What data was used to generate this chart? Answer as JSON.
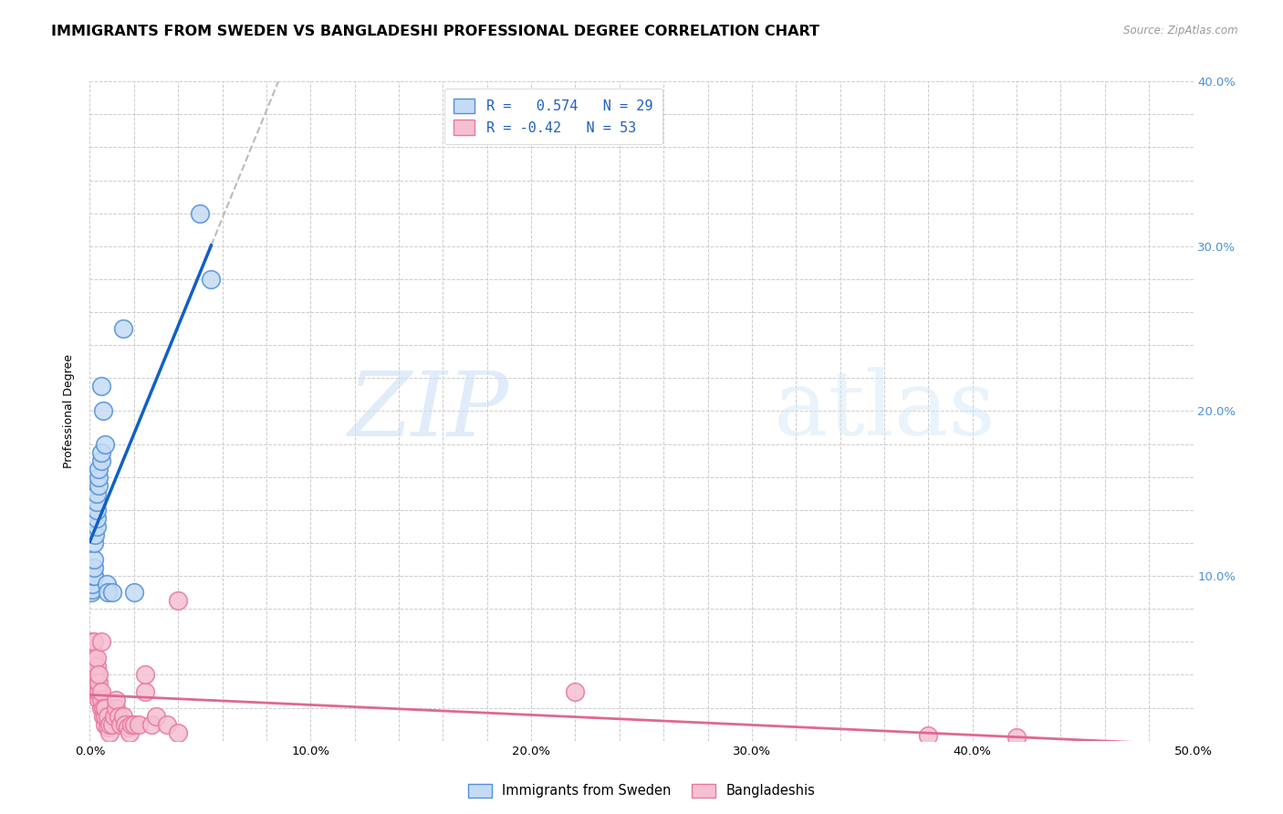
{
  "title": "IMMIGRANTS FROM SWEDEN VS BANGLADESHI PROFESSIONAL DEGREE CORRELATION CHART",
  "source": "Source: ZipAtlas.com",
  "ylabel": "Professional Degree",
  "legend_labels": [
    "Immigrants from Sweden",
    "Bangladeshis"
  ],
  "r_sweden": 0.574,
  "n_sweden": 29,
  "r_bangladesh": -0.42,
  "n_bangladesh": 53,
  "sweden_fill_color": "#c5dbf5",
  "bangladesh_fill_color": "#f5c0d0",
  "sweden_edge_color": "#5090d8",
  "bangladesh_edge_color": "#e878a0",
  "sweden_line_color": "#1060c8",
  "bangladesh_line_color": "#e06890",
  "dashed_color": "#bbbbbb",
  "right_tick_color": "#4a90d9",
  "xlim": [
    0.0,
    0.5
  ],
  "ylim": [
    0.0,
    0.4
  ],
  "background_color": "#ffffff",
  "grid_color": "#cccccc",
  "title_fontsize": 11.5,
  "axis_label_fontsize": 9,
  "tick_fontsize": 9.5,
  "scatter_size": 200,
  "sweden_scatter_x": [
    0.0008,
    0.001,
    0.001,
    0.0015,
    0.002,
    0.002,
    0.002,
    0.002,
    0.0025,
    0.003,
    0.003,
    0.003,
    0.003,
    0.003,
    0.004,
    0.004,
    0.004,
    0.005,
    0.005,
    0.005,
    0.006,
    0.007,
    0.0075,
    0.008,
    0.01,
    0.015,
    0.02,
    0.05,
    0.055
  ],
  "sweden_scatter_y": [
    0.09,
    0.092,
    0.095,
    0.1,
    0.1,
    0.105,
    0.11,
    0.12,
    0.125,
    0.13,
    0.135,
    0.14,
    0.145,
    0.15,
    0.155,
    0.16,
    0.165,
    0.17,
    0.175,
    0.215,
    0.2,
    0.18,
    0.095,
    0.09,
    0.09,
    0.25,
    0.09,
    0.32,
    0.28
  ],
  "bangladesh_scatter_x": [
    0.001,
    0.001,
    0.001,
    0.001,
    0.002,
    0.002,
    0.002,
    0.002,
    0.003,
    0.003,
    0.003,
    0.003,
    0.003,
    0.004,
    0.004,
    0.004,
    0.004,
    0.005,
    0.005,
    0.005,
    0.005,
    0.006,
    0.006,
    0.007,
    0.007,
    0.007,
    0.008,
    0.008,
    0.009,
    0.009,
    0.01,
    0.011,
    0.012,
    0.012,
    0.013,
    0.014,
    0.015,
    0.016,
    0.017,
    0.018,
    0.019,
    0.02,
    0.022,
    0.025,
    0.025,
    0.028,
    0.03,
    0.035,
    0.04,
    0.04,
    0.22,
    0.38,
    0.42
  ],
  "bangladesh_scatter_y": [
    0.045,
    0.05,
    0.055,
    0.06,
    0.04,
    0.045,
    0.05,
    0.06,
    0.03,
    0.035,
    0.04,
    0.045,
    0.05,
    0.025,
    0.03,
    0.035,
    0.04,
    0.02,
    0.025,
    0.03,
    0.06,
    0.015,
    0.02,
    0.01,
    0.015,
    0.02,
    0.008,
    0.015,
    0.005,
    0.01,
    0.01,
    0.015,
    0.02,
    0.025,
    0.015,
    0.01,
    0.015,
    0.01,
    0.008,
    0.005,
    0.01,
    0.01,
    0.01,
    0.03,
    0.04,
    0.01,
    0.015,
    0.01,
    0.005,
    0.085,
    0.03,
    0.003,
    0.002
  ]
}
